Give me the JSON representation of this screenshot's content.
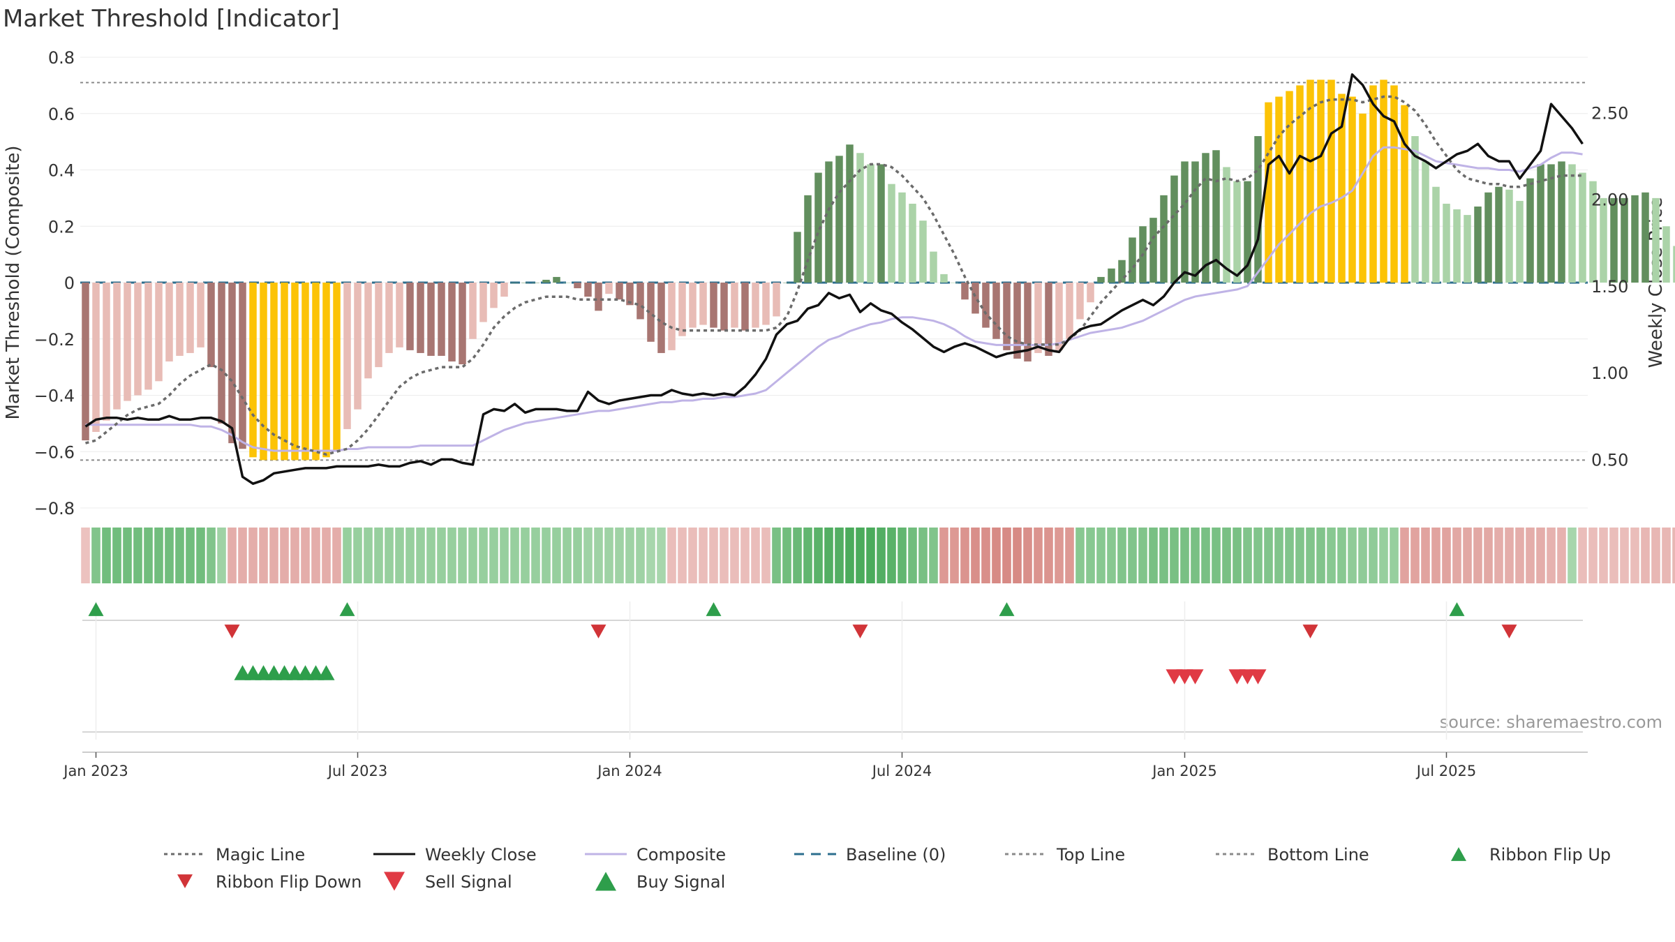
{
  "chart_data": {
    "type": "bar",
    "title": "Market Threshold [Indicator]",
    "ylabel_left": "Market Threshold (Composite)",
    "ylabel_right": "Weekly Close Price",
    "source": "source: sharemaestro.com",
    "ylim_left": [
      -0.8,
      0.8
    ],
    "ylim_right": [
      0.22,
      2.82
    ],
    "left_ticks": [
      {
        "v": 0.8,
        "label": "0.8"
      },
      {
        "v": 0.6,
        "label": "0.6"
      },
      {
        "v": 0.4,
        "label": "0.4"
      },
      {
        "v": 0.2,
        "label": "0.2"
      },
      {
        "v": 0,
        "label": "0"
      },
      {
        "v": -0.2,
        "label": "−0.2"
      },
      {
        "v": -0.4,
        "label": "−0.4"
      },
      {
        "v": -0.6,
        "label": "−0.6"
      },
      {
        "v": -0.8,
        "label": "−0.8"
      }
    ],
    "right_ticks": [
      {
        "v": 2.5,
        "label": "2.50"
      },
      {
        "v": 2.0,
        "label": "2.00"
      },
      {
        "v": 1.5,
        "label": "1.50"
      },
      {
        "v": 1.0,
        "label": "1.00"
      },
      {
        "v": 0.5,
        "label": "0.50"
      }
    ],
    "x_ticks": [
      {
        "week": 1,
        "label": "Jan 2023"
      },
      {
        "week": 26,
        "label": "Jul 2023"
      },
      {
        "week": 52,
        "label": "Jan 2024"
      },
      {
        "week": 78,
        "label": "Jul 2024"
      },
      {
        "week": 105,
        "label": "Jan 2025"
      },
      {
        "week": 130,
        "label": "Jul 2025"
      }
    ],
    "top_line": 0.71,
    "bottom_line": -0.63,
    "baseline": 0,
    "weeks": 144,
    "composite_bars": [
      -0.56,
      -0.53,
      -0.49,
      -0.45,
      -0.42,
      -0.4,
      -0.38,
      -0.35,
      -0.28,
      -0.26,
      -0.25,
      -0.23,
      -0.3,
      -0.5,
      -0.57,
      -0.59,
      -0.62,
      -0.63,
      -0.63,
      -0.63,
      -0.63,
      -0.63,
      -0.63,
      -0.62,
      -0.6,
      -0.52,
      -0.45,
      -0.34,
      -0.3,
      -0.25,
      -0.23,
      -0.24,
      -0.25,
      -0.26,
      -0.26,
      -0.28,
      -0.29,
      -0.2,
      -0.14,
      -0.09,
      -0.05,
      0,
      0,
      0,
      0.01,
      0.02,
      0,
      -0.02,
      -0.05,
      -0.1,
      -0.04,
      -0.06,
      -0.08,
      -0.13,
      -0.21,
      -0.25,
      -0.24,
      -0.19,
      -0.16,
      -0.15,
      -0.16,
      -0.17,
      -0.16,
      -0.17,
      -0.16,
      -0.15,
      -0.12,
      0,
      0.18,
      0.31,
      0.39,
      0.43,
      0.45,
      0.49,
      0.46,
      0.42,
      0.42,
      0.35,
      0.32,
      0.28,
      0.22,
      0.11,
      0.03,
      0,
      -0.06,
      -0.11,
      -0.16,
      -0.2,
      -0.24,
      -0.27,
      -0.28,
      -0.25,
      -0.26,
      -0.24,
      -0.2,
      -0.13,
      -0.07,
      0.02,
      0.05,
      0.08,
      0.16,
      0.2,
      0.23,
      0.31,
      0.38,
      0.43,
      0.43,
      0.46,
      0.47,
      0.41,
      0.36,
      0.36,
      0.52,
      0.64,
      0.66,
      0.68,
      0.7,
      0.72,
      0.72,
      0.72,
      0.67,
      0.66,
      0.6,
      0.7,
      0.72,
      0.7,
      0.63,
      0.52,
      0.43,
      0.34,
      0.28,
      0.26,
      0.24,
      0.27,
      0.32,
      0.34,
      0.33,
      0.29,
      0.37,
      0.42,
      0.42,
      0.43,
      0.42,
      0.39,
      0.36,
      0.3,
      0.3,
      0.3,
      0.31,
      0.32,
      0.3,
      0.2,
      0.13,
      0.19
    ],
    "bar_colors": {
      "neg_light": "#e8bcb6",
      "neg_dark": "#a87672",
      "pos_light": "#abd3a8",
      "pos_dark": "#628f5e",
      "extreme": "#fcc306"
    },
    "series": [
      {
        "name": "Magic Line",
        "color": "#6b6b6b",
        "axis": "left",
        "values": [
          -0.57,
          -0.56,
          -0.53,
          -0.5,
          -0.47,
          -0.45,
          -0.44,
          -0.43,
          -0.4,
          -0.36,
          -0.33,
          -0.31,
          -0.29,
          -0.31,
          -0.35,
          -0.41,
          -0.47,
          -0.51,
          -0.54,
          -0.56,
          -0.58,
          -0.59,
          -0.6,
          -0.61,
          -0.6,
          -0.59,
          -0.56,
          -0.52,
          -0.47,
          -0.42,
          -0.37,
          -0.34,
          -0.32,
          -0.31,
          -0.3,
          -0.3,
          -0.3,
          -0.27,
          -0.22,
          -0.16,
          -0.12,
          -0.09,
          -0.07,
          -0.06,
          -0.05,
          -0.05,
          -0.05,
          -0.06,
          -0.06,
          -0.06,
          -0.06,
          -0.06,
          -0.07,
          -0.08,
          -0.11,
          -0.14,
          -0.16,
          -0.17,
          -0.17,
          -0.17,
          -0.17,
          -0.17,
          -0.17,
          -0.17,
          -0.17,
          -0.17,
          -0.16,
          -0.12,
          -0.03,
          0.08,
          0.18,
          0.26,
          0.32,
          0.36,
          0.4,
          0.42,
          0.42,
          0.41,
          0.38,
          0.34,
          0.3,
          0.24,
          0.17,
          0.1,
          0.02,
          -0.05,
          -0.11,
          -0.15,
          -0.19,
          -0.21,
          -0.22,
          -0.22,
          -0.22,
          -0.22,
          -0.2,
          -0.17,
          -0.12,
          -0.07,
          -0.03,
          0.01,
          0.05,
          0.1,
          0.16,
          0.2,
          0.24,
          0.28,
          0.33,
          0.37,
          0.36,
          0.37,
          0.36,
          0.37,
          0.4,
          0.46,
          0.52,
          0.56,
          0.59,
          0.62,
          0.64,
          0.65,
          0.65,
          0.65,
          0.64,
          0.65,
          0.66,
          0.66,
          0.64,
          0.61,
          0.56,
          0.5,
          0.45,
          0.4,
          0.37,
          0.36,
          0.35,
          0.35,
          0.34,
          0.34,
          0.35,
          0.36,
          0.37,
          0.38,
          0.38,
          0.38,
          0.37,
          0.35,
          0.34,
          0.33,
          0.33,
          0.33,
          0.31,
          0.28,
          0.26,
          0.24,
          0.24,
          0.24
        ]
      },
      {
        "name": "Weekly Close",
        "color": "#111111",
        "axis": "right",
        "values": [
          0.69,
          0.73,
          0.74,
          0.74,
          0.73,
          0.74,
          0.73,
          0.73,
          0.75,
          0.73,
          0.73,
          0.74,
          0.74,
          0.72,
          0.68,
          0.4,
          0.36,
          0.38,
          0.42,
          0.43,
          0.44,
          0.45,
          0.45,
          0.45,
          0.46,
          0.46,
          0.46,
          0.46,
          0.47,
          0.46,
          0.46,
          0.48,
          0.49,
          0.47,
          0.5,
          0.5,
          0.48,
          0.47,
          0.76,
          0.79,
          0.78,
          0.82,
          0.77,
          0.79,
          0.79,
          0.79,
          0.78,
          0.78,
          0.89,
          0.84,
          0.82,
          0.84,
          0.85,
          0.86,
          0.87,
          0.87,
          0.9,
          0.88,
          0.87,
          0.88,
          0.87,
          0.88,
          0.87,
          0.92,
          0.99,
          1.08,
          1.22,
          1.28,
          1.3,
          1.37,
          1.39,
          1.46,
          1.43,
          1.45,
          1.35,
          1.4,
          1.36,
          1.34,
          1.29,
          1.25,
          1.2,
          1.15,
          1.12,
          1.15,
          1.17,
          1.15,
          1.12,
          1.09,
          1.11,
          1.12,
          1.13,
          1.15,
          1.13,
          1.12,
          1.2,
          1.25,
          1.27,
          1.28,
          1.32,
          1.36,
          1.39,
          1.42,
          1.39,
          1.44,
          1.52,
          1.58,
          1.56,
          1.62,
          1.65,
          1.6,
          1.56,
          1.62,
          1.77,
          2.2,
          2.25,
          2.15,
          2.25,
          2.22,
          2.25,
          2.38,
          2.42,
          2.72,
          2.66,
          2.55,
          2.48,
          2.45,
          2.32,
          2.25,
          2.22,
          2.18,
          2.22,
          2.26,
          2.28,
          2.32,
          2.25,
          2.22,
          2.22,
          2.12,
          2.2,
          2.28,
          2.55,
          2.48,
          2.41,
          2.32,
          2.22,
          2.28,
          2.18,
          2.22,
          2.32,
          2.1,
          2.16,
          2.2,
          2.25,
          2.28,
          2.22
        ],
        "note": "weekly close values in price units"
      },
      {
        "name": "Composite",
        "color": "#bfb3e6",
        "axis": "right",
        "values": [
          0.7,
          0.7,
          0.7,
          0.7,
          0.7,
          0.7,
          0.7,
          0.7,
          0.7,
          0.7,
          0.7,
          0.69,
          0.69,
          0.67,
          0.64,
          0.6,
          0.57,
          0.56,
          0.55,
          0.55,
          0.55,
          0.55,
          0.55,
          0.55,
          0.55,
          0.56,
          0.56,
          0.57,
          0.57,
          0.57,
          0.57,
          0.57,
          0.58,
          0.58,
          0.58,
          0.58,
          0.58,
          0.58,
          0.61,
          0.64,
          0.67,
          0.69,
          0.71,
          0.72,
          0.73,
          0.74,
          0.75,
          0.76,
          0.77,
          0.78,
          0.78,
          0.79,
          0.8,
          0.81,
          0.82,
          0.83,
          0.83,
          0.84,
          0.84,
          0.85,
          0.85,
          0.86,
          0.86,
          0.87,
          0.88,
          0.9,
          0.95,
          1.0,
          1.05,
          1.1,
          1.15,
          1.19,
          1.21,
          1.24,
          1.26,
          1.28,
          1.29,
          1.31,
          1.32,
          1.32,
          1.31,
          1.3,
          1.28,
          1.25,
          1.21,
          1.18,
          1.17,
          1.16,
          1.16,
          1.16,
          1.16,
          1.16,
          1.16,
          1.17,
          1.19,
          1.21,
          1.23,
          1.24,
          1.25,
          1.26,
          1.28,
          1.3,
          1.33,
          1.36,
          1.39,
          1.42,
          1.44,
          1.45,
          1.46,
          1.47,
          1.48,
          1.5,
          1.58,
          1.66,
          1.74,
          1.8,
          1.86,
          1.92,
          1.96,
          1.98,
          2.01,
          2.05,
          2.15,
          2.25,
          2.3,
          2.3,
          2.29,
          2.28,
          2.25,
          2.22,
          2.21,
          2.2,
          2.19,
          2.18,
          2.18,
          2.17,
          2.17,
          2.16,
          2.18,
          2.2,
          2.24,
          2.27,
          2.27,
          2.26,
          2.25,
          2.24,
          2.23,
          2.23,
          2.22,
          2.22,
          2.23,
          2.25,
          2.26,
          2.26,
          2.25,
          2.24,
          2.23,
          2.22
        ]
      }
    ],
    "ribbon": {
      "description": "weekly ribbon strength, positive = green, negative = red",
      "values": [
        -0.2,
        0.5,
        0.6,
        0.6,
        0.6,
        0.6,
        0.6,
        0.6,
        0.6,
        0.6,
        0.6,
        0.6,
        0.5,
        0.3,
        -0.4,
        -0.4,
        -0.4,
        -0.4,
        -0.4,
        -0.4,
        -0.4,
        -0.4,
        -0.4,
        -0.4,
        -0.4,
        0.35,
        0.35,
        0.35,
        0.35,
        0.35,
        0.35,
        0.35,
        0.35,
        0.35,
        0.35,
        0.35,
        0.35,
        0.35,
        0.35,
        0.35,
        0.35,
        0.35,
        0.35,
        0.35,
        0.35,
        0.35,
        0.35,
        0.35,
        0.3,
        0.3,
        0.3,
        0.3,
        0.3,
        0.3,
        0.25,
        0.25,
        -0.25,
        -0.25,
        -0.25,
        -0.25,
        -0.25,
        -0.25,
        -0.25,
        -0.25,
        -0.25,
        -0.25,
        0.55,
        0.6,
        0.65,
        0.7,
        0.75,
        0.8,
        0.8,
        0.85,
        0.85,
        0.85,
        0.8,
        0.75,
        0.7,
        0.6,
        0.55,
        0.5,
        -0.6,
        -0.6,
        -0.65,
        -0.7,
        -0.7,
        -0.75,
        -0.75,
        -0.75,
        -0.7,
        -0.65,
        -0.65,
        -0.6,
        -0.6,
        0.45,
        0.45,
        0.45,
        0.45,
        0.5,
        0.5,
        0.5,
        0.55,
        0.55,
        0.55,
        0.55,
        0.55,
        0.55,
        0.55,
        0.55,
        0.55,
        0.5,
        0.5,
        0.5,
        0.5,
        0.5,
        0.5,
        0.5,
        0.5,
        0.45,
        0.45,
        0.4,
        0.4,
        0.4,
        0.35,
        0.35,
        -0.5,
        -0.5,
        -0.5,
        -0.5,
        -0.5,
        -0.45,
        -0.45,
        -0.45,
        -0.45,
        -0.4,
        -0.4,
        -0.4,
        -0.4,
        -0.4,
        -0.35,
        -0.35,
        0.25,
        -0.25,
        -0.25,
        -0.25,
        -0.25,
        -0.25,
        -0.25,
        -0.3,
        -0.3,
        -0.3,
        -0.3,
        -0.3,
        -0.35,
        -0.35,
        -0.4
      ]
    },
    "ribbon_flip_up_weeks": [
      1,
      25,
      60,
      88,
      131
    ],
    "ribbon_flip_down_weeks": [
      14,
      49,
      74,
      117,
      136
    ],
    "buy_signal_weeks": [
      15,
      16,
      17,
      18,
      19,
      20,
      21,
      22,
      23
    ],
    "sell_signal_weeks": [
      104,
      105,
      106,
      110,
      111,
      112
    ],
    "legend": [
      {
        "label": "Magic Line",
        "marker": "dotted-line",
        "color": "#6b6b6b"
      },
      {
        "label": "Weekly Close",
        "marker": "solid-line",
        "color": "#111111"
      },
      {
        "label": "Composite",
        "marker": "solid-line",
        "color": "#bfb3e6"
      },
      {
        "label": "Baseline (0)",
        "marker": "dashed-line",
        "color": "#2c6e8e"
      },
      {
        "label": "Top Line",
        "marker": "dotted-line",
        "color": "#8a8a8a"
      },
      {
        "label": "Bottom Line",
        "marker": "dotted-line",
        "color": "#8a8a8a"
      },
      {
        "label": "Ribbon Flip Up",
        "marker": "triangle-up",
        "color": "#2e9e4b"
      },
      {
        "label": "Ribbon Flip Down",
        "marker": "triangle-down",
        "color": "#d13438"
      },
      {
        "label": "Sell Signal",
        "marker": "triangle-down-large",
        "color": "#e03a44"
      },
      {
        "label": "Buy Signal",
        "marker": "triangle-up-large",
        "color": "#2e9e4b"
      }
    ],
    "legend_position": "bottom"
  }
}
